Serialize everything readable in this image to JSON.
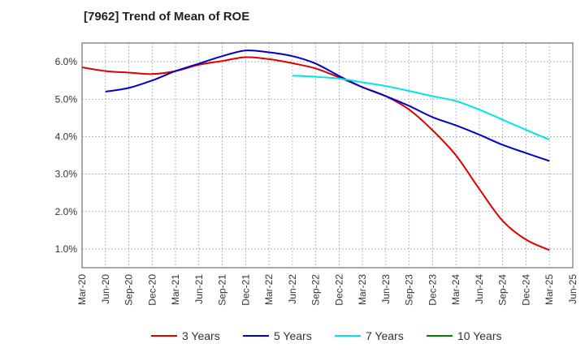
{
  "chart_data": {
    "type": "line",
    "title": "[7962]  Trend of Mean of ROE",
    "xlabel": "",
    "ylabel": "",
    "ylim": [
      0.5,
      6.5
    ],
    "yticks": [
      1.0,
      2.0,
      3.0,
      4.0,
      5.0,
      6.0
    ],
    "ytick_labels": [
      "1.0%",
      "2.0%",
      "3.0%",
      "4.0%",
      "5.0%",
      "6.0%"
    ],
    "categories": [
      "Mar-20",
      "Jun-20",
      "Sep-20",
      "Dec-20",
      "Mar-21",
      "Jun-21",
      "Sep-21",
      "Dec-21",
      "Mar-22",
      "Jun-22",
      "Sep-22",
      "Dec-22",
      "Mar-23",
      "Jun-23",
      "Sep-23",
      "Dec-23",
      "Mar-24",
      "Jun-24",
      "Sep-24",
      "Dec-24",
      "Mar-25",
      "Jun-25"
    ],
    "grid": true,
    "legend_position": "bottom",
    "series": [
      {
        "name": "3 Years",
        "color": "#dd0000",
        "values": [
          5.85,
          5.75,
          5.71,
          5.67,
          5.75,
          5.92,
          6.02,
          6.12,
          6.07,
          5.96,
          5.82,
          5.58,
          5.32,
          5.08,
          4.72,
          4.17,
          3.5,
          2.6,
          1.75,
          1.25,
          0.97,
          null
        ]
      },
      {
        "name": "5 Years",
        "color": "#0000cc",
        "values": [
          null,
          5.2,
          5.3,
          5.5,
          5.75,
          5.95,
          6.15,
          6.3,
          6.25,
          6.15,
          5.95,
          5.62,
          5.32,
          5.08,
          4.82,
          4.52,
          4.3,
          4.05,
          3.78,
          3.56,
          3.35,
          null
        ]
      },
      {
        "name": "7 Years",
        "color": "#00e5e5",
        "values": [
          null,
          null,
          null,
          null,
          null,
          null,
          null,
          null,
          null,
          5.63,
          5.6,
          5.55,
          5.45,
          5.35,
          5.22,
          5.08,
          4.95,
          4.72,
          4.45,
          4.18,
          3.92,
          null
        ]
      },
      {
        "name": "10 Years",
        "color": "#008000",
        "values": [
          null,
          null,
          null,
          null,
          null,
          null,
          null,
          null,
          null,
          null,
          null,
          null,
          null,
          null,
          null,
          null,
          null,
          null,
          null,
          null,
          null,
          null
        ]
      }
    ]
  }
}
